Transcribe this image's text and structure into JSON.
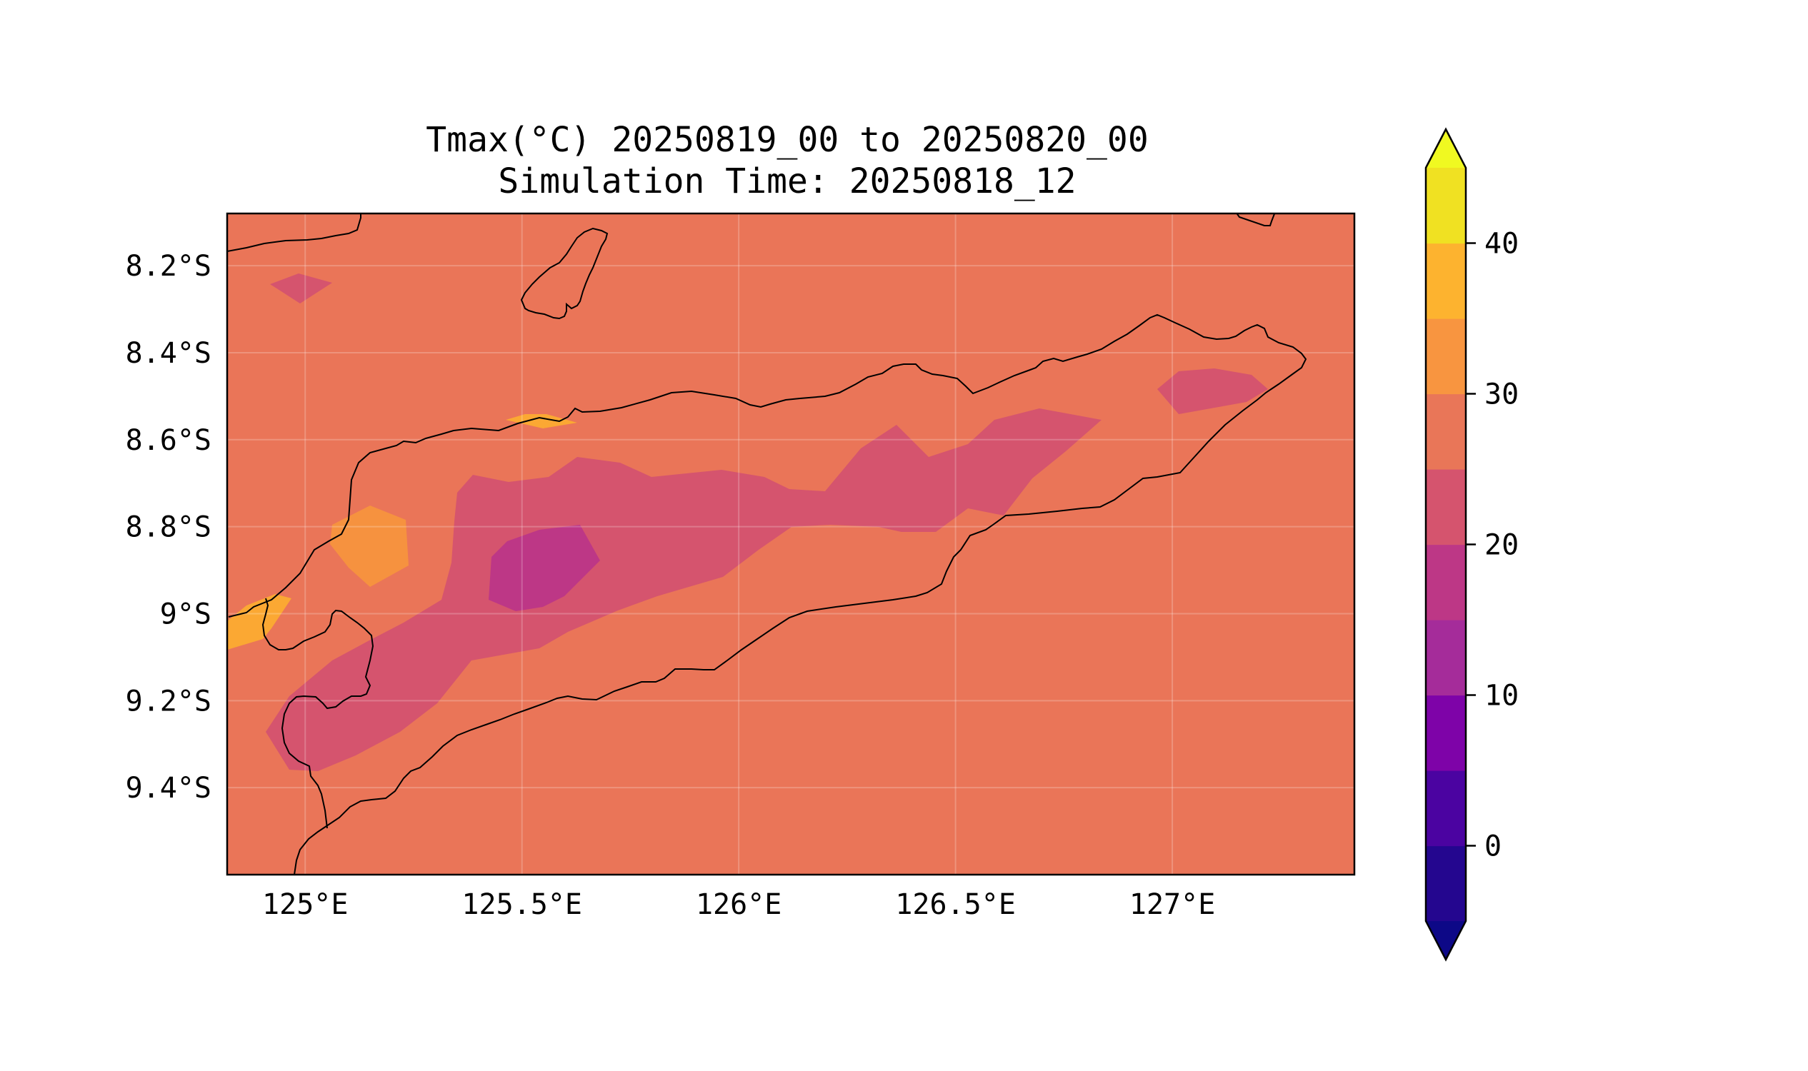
{
  "title": "Tmax(°C) 20250819_00 to 20250820_00",
  "subtitle": "Simulation Time: 20250818_12",
  "map": {
    "lon_range": [
      124.82,
      127.42
    ],
    "lat_range": [
      -9.6,
      -8.08
    ],
    "lon_ticks": [
      {
        "value": 125.0,
        "label": "125°E"
      },
      {
        "value": 125.5,
        "label": "125.5°E"
      },
      {
        "value": 126.0,
        "label": "126°E"
      },
      {
        "value": 126.5,
        "label": "126.5°E"
      },
      {
        "value": 127.0,
        "label": "127°E"
      }
    ],
    "lat_ticks": [
      {
        "value": -8.2,
        "label": "8.2°S"
      },
      {
        "value": -8.4,
        "label": "8.4°S"
      },
      {
        "value": -8.6,
        "label": "8.6°S"
      },
      {
        "value": -8.8,
        "label": "8.8°S"
      },
      {
        "value": -9.0,
        "label": "9°S"
      },
      {
        "value": -9.2,
        "label": "9.2°S"
      },
      {
        "value": -9.4,
        "label": "9.4°S"
      }
    ],
    "gridlines": true,
    "background_level": "25–30"
  },
  "colorbar": {
    "variable": "Tmax (°C)",
    "bins": [
      {
        "range": "<-5",
        "color": "#0d0887"
      },
      {
        "range": "-5–0",
        "color": "#24068f"
      },
      {
        "range": "0–5",
        "color": "#4b03a1"
      },
      {
        "range": "5–10",
        "color": "#7e03a8"
      },
      {
        "range": "10–15",
        "color": "#a52c9a"
      },
      {
        "range": "15–20",
        "color": "#bd3786"
      },
      {
        "range": "20–25",
        "color": "#d5546e"
      },
      {
        "range": "25–30",
        "color": "#e97658"
      },
      {
        "range": "30–35",
        "color": "#f89540"
      },
      {
        "range": "35–40",
        "color": "#fdb32f"
      },
      {
        "range": "40–45",
        "color": "#f0e122"
      },
      {
        "range": ">45",
        "color": "#f0f921"
      }
    ],
    "ticks": [
      {
        "value": 0,
        "label": "0"
      },
      {
        "value": 10,
        "label": "10"
      },
      {
        "value": 20,
        "label": "20"
      },
      {
        "value": 30,
        "label": "30"
      },
      {
        "value": 40,
        "label": "40"
      }
    ],
    "extend": "both"
  },
  "colors": {
    "background_fill": "#ea7558",
    "level_20_25": "#d5546e",
    "level_15_20": "#bd3786",
    "level_30_35": "#f6923f",
    "level_35_40": "#fba833",
    "coastline": "#000000"
  }
}
